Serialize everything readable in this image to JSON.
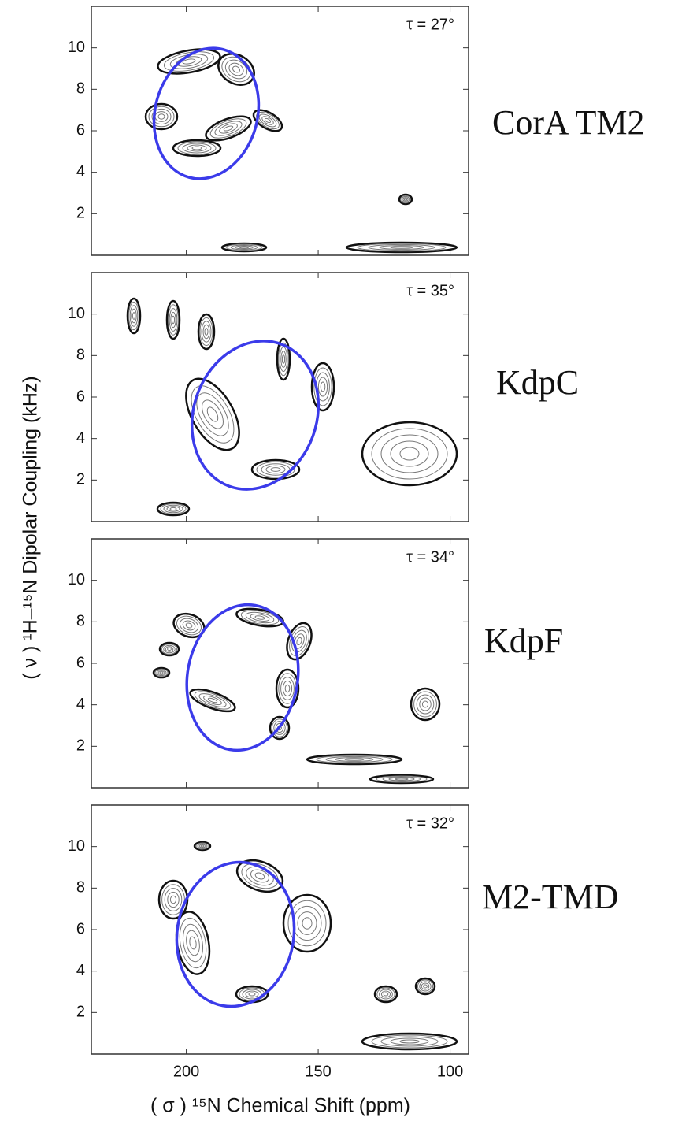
{
  "x_label": "( σ ) ¹⁵N Chemical Shift (ppm)",
  "y_label": "( ν ) ¹H–¹⁵N Dipolar Coupling (kHz)",
  "chart_data": [
    {
      "type": "contour",
      "title": "CorA TM2",
      "annotation": "τ = 27°",
      "xlim": [
        236,
        93
      ],
      "xticks": [
        200,
        150,
        100
      ],
      "ylim": [
        0,
        12
      ],
      "yticks": [
        2,
        4,
        6,
        8,
        10
      ]
    },
    {
      "type": "contour",
      "title": "KdpC",
      "annotation": "τ = 35°",
      "xlim": [
        236,
        93
      ],
      "xticks": [
        200,
        150,
        100
      ],
      "ylim": [
        0,
        12
      ],
      "yticks": [
        2,
        4,
        6,
        8,
        10
      ]
    },
    {
      "type": "contour",
      "title": "KdpF",
      "annotation": "τ = 34°",
      "xlim": [
        236,
        93
      ],
      "xticks": [
        200,
        150,
        100
      ],
      "ylim": [
        0,
        12
      ],
      "yticks": [
        2,
        4,
        6,
        8,
        10
      ]
    },
    {
      "type": "contour",
      "title": "M2-TMD",
      "annotation": "τ = 32°",
      "xlim": [
        236,
        93
      ],
      "xticks": [
        200,
        150,
        100
      ],
      "ylim": [
        0,
        12
      ],
      "yticks": [
        2,
        4,
        6,
        8,
        10
      ]
    }
  ]
}
